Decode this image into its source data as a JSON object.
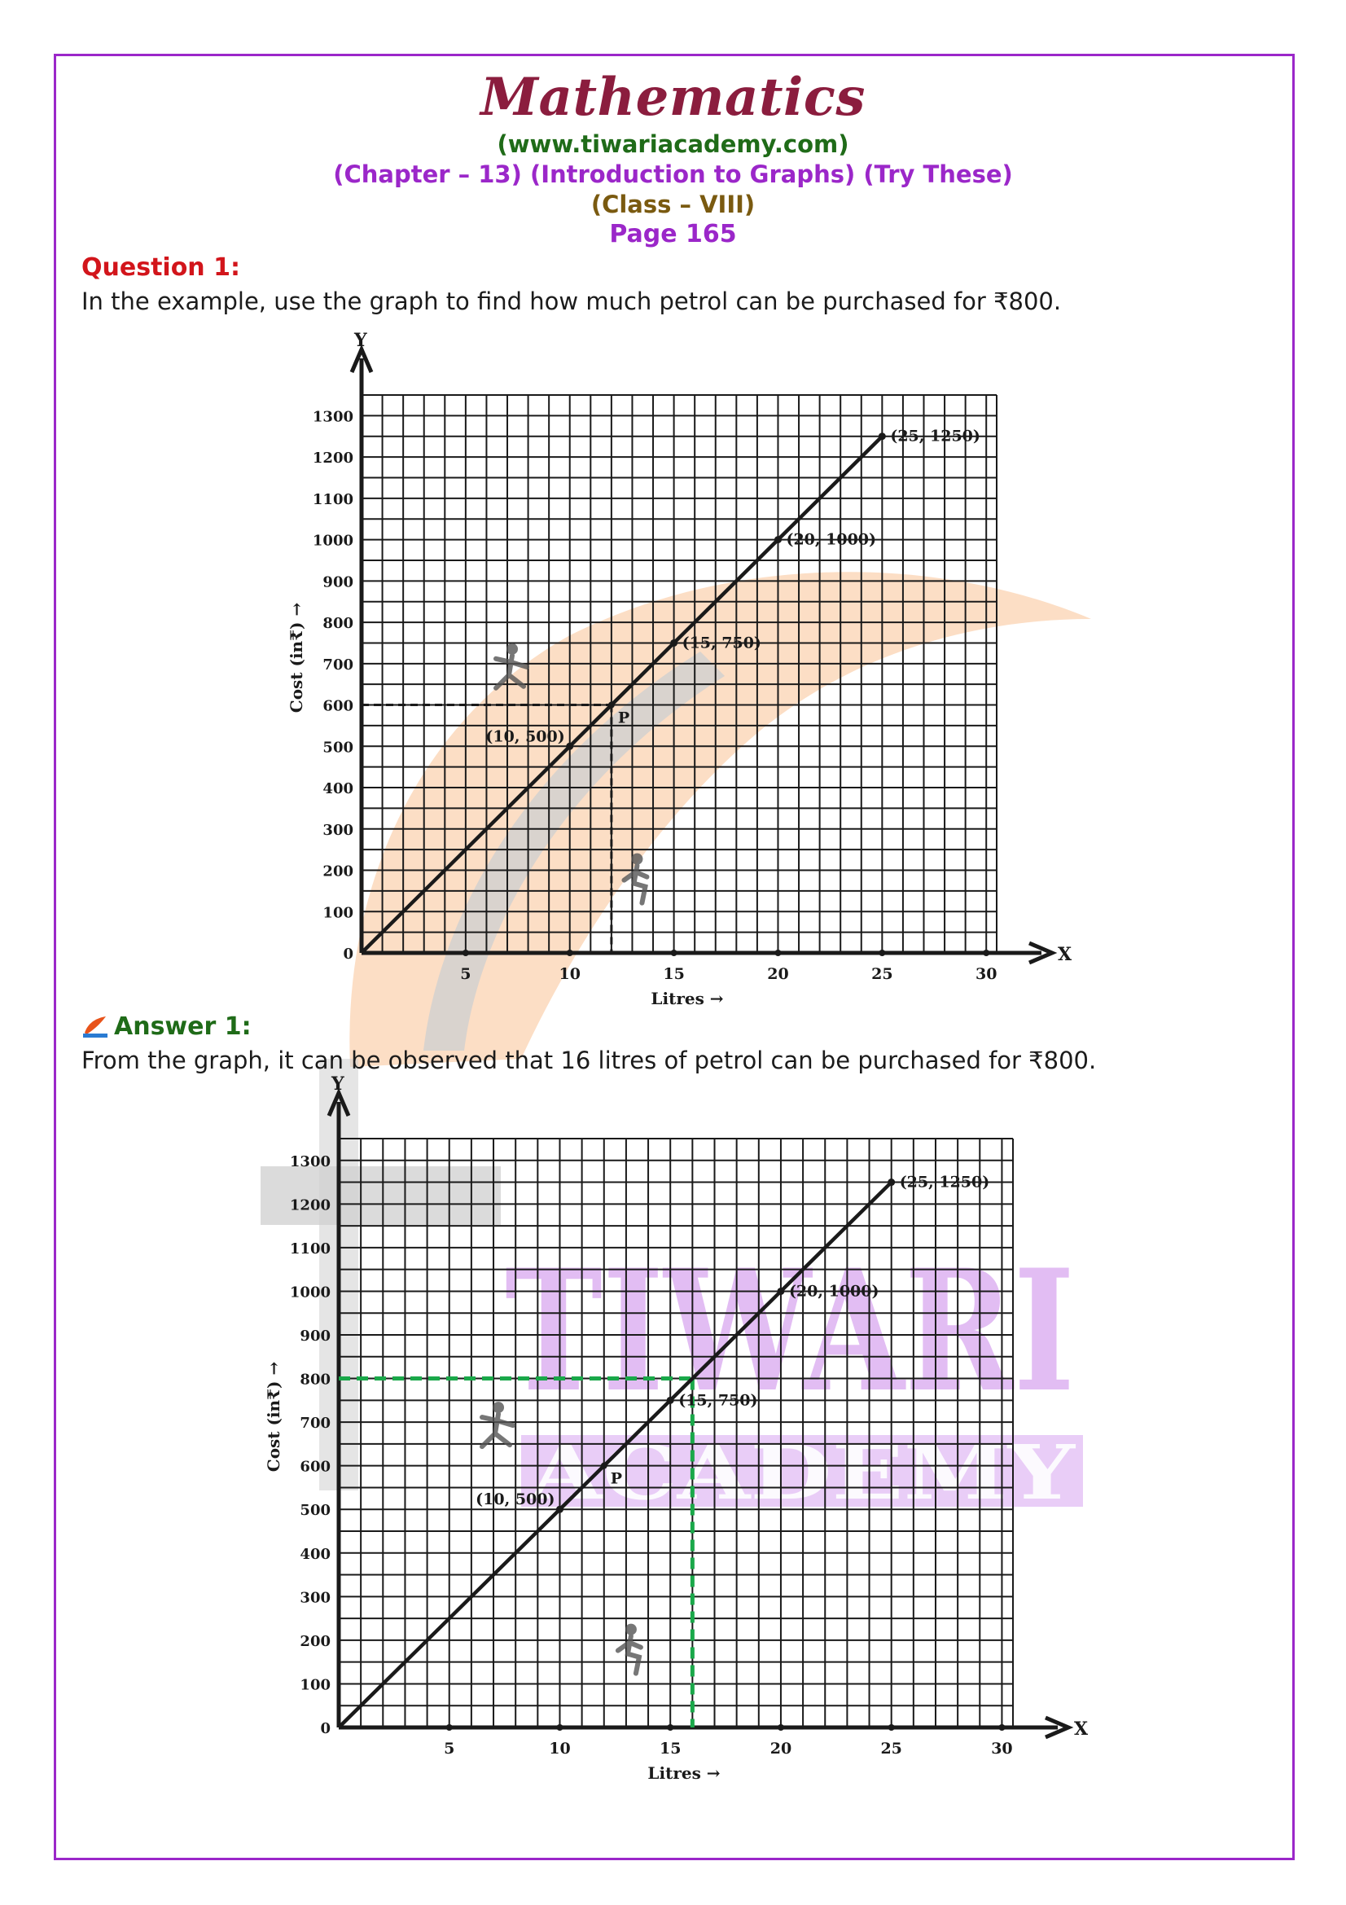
{
  "header": {
    "title": "Mathematics",
    "site": "(www.tiwariacademy.com)",
    "chapter": "(Chapter – 13) (Introduction to Graphs) (Try These)",
    "class_label": "(Class – VIII)",
    "page": "Page 165"
  },
  "question": {
    "heading": "Question 1:",
    "text": "In the example, use the graph to find how much petrol can be purchased for ₹800."
  },
  "answer": {
    "heading": "Answer 1:",
    "text": "From the graph, it can be observed that 16 litres of petrol can be purchased for ₹800."
  },
  "watermark": {
    "word1": "TIWARI",
    "word2": "ACADEMY",
    "color": "#d9a8f0"
  },
  "colors": {
    "line": "#1a1a1a",
    "green_dash": "#1aa84a",
    "orange_wash": "#fbd3b2"
  },
  "chart_data": [
    {
      "type": "line",
      "x_axis_letter": "X",
      "y_axis_letter": "Y",
      "xlabel": "Litres →",
      "ylabel": "Cost (in₹) →",
      "x_ticks": [
        "5",
        "10",
        "15",
        "20",
        "25",
        "30"
      ],
      "y_ticks": [
        "0",
        "100",
        "200",
        "300",
        "400",
        "500",
        "600",
        "700",
        "800",
        "900",
        "1000",
        "1100",
        "1200",
        "1300"
      ],
      "xlim": [
        0,
        30
      ],
      "ylim": [
        0,
        1300
      ],
      "grid": true,
      "series": [
        {
          "x": [
            0,
            10,
            15,
            20,
            25
          ],
          "y": [
            0,
            500,
            750,
            1000,
            1250
          ]
        }
      ],
      "point_labels": [
        {
          "x": 10,
          "y": 500,
          "label": "(10, 500)"
        },
        {
          "x": 15,
          "y": 750,
          "label": "(15, 750)"
        },
        {
          "x": 20,
          "y": 1000,
          "label": "(20, 1000)"
        },
        {
          "x": 25,
          "y": 1250,
          "label": "(25, 1250)"
        }
      ],
      "marked_point": {
        "label": "P",
        "x": 12,
        "y": 600
      },
      "guide": {
        "x": 12,
        "y": 600,
        "style": "black-dashed"
      }
    },
    {
      "type": "line",
      "x_axis_letter": "X",
      "y_axis_letter": "Y",
      "xlabel": "Litres →",
      "ylabel": "Cost (in₹) →",
      "x_ticks": [
        "5",
        "10",
        "15",
        "20",
        "25",
        "30"
      ],
      "y_ticks": [
        "0",
        "100",
        "200",
        "300",
        "400",
        "500",
        "600",
        "700",
        "800",
        "900",
        "1000",
        "1100",
        "1200",
        "1300"
      ],
      "xlim": [
        0,
        30
      ],
      "ylim": [
        0,
        1300
      ],
      "grid": true,
      "series": [
        {
          "x": [
            0,
            10,
            15,
            20,
            25
          ],
          "y": [
            0,
            500,
            750,
            1000,
            1250
          ]
        }
      ],
      "point_labels": [
        {
          "x": 10,
          "y": 500,
          "label": "(10, 500)"
        },
        {
          "x": 15,
          "y": 750,
          "label": "(15, 750)"
        },
        {
          "x": 20,
          "y": 1000,
          "label": "(20, 1000)"
        },
        {
          "x": 25,
          "y": 1250,
          "label": "(25, 1250)"
        }
      ],
      "marked_point": {
        "label": "P",
        "x": 12,
        "y": 600
      },
      "guide": {
        "x": 16,
        "y": 800,
        "style": "green-dashed"
      }
    }
  ]
}
